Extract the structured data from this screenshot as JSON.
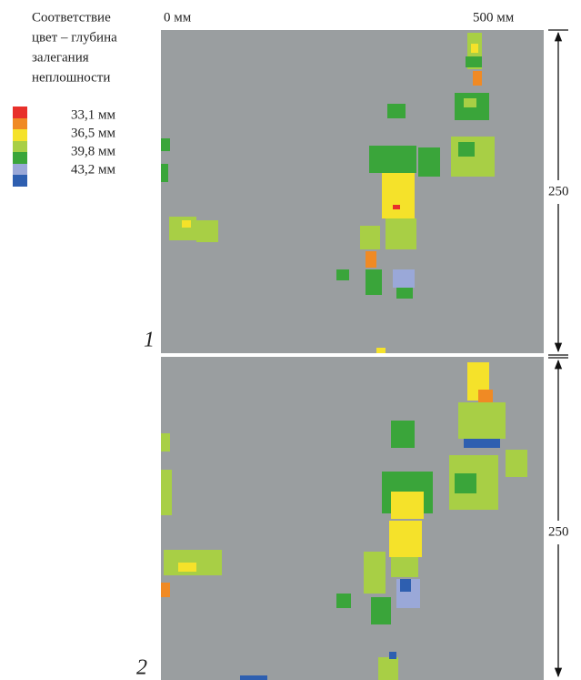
{
  "legend": {
    "title_lines": [
      "Соответствие",
      "цвет – глубина",
      "залегания",
      "неплошности"
    ],
    "labels": [
      "33,1 мм",
      "36,5 мм",
      "39,8 мм",
      "43,2 мм"
    ]
  },
  "axis": {
    "start": "0 мм",
    "end": "500 мм"
  },
  "panels": [
    {
      "label": "1",
      "height_label": "250"
    },
    {
      "label": "2",
      "height_label": "250"
    }
  ]
}
